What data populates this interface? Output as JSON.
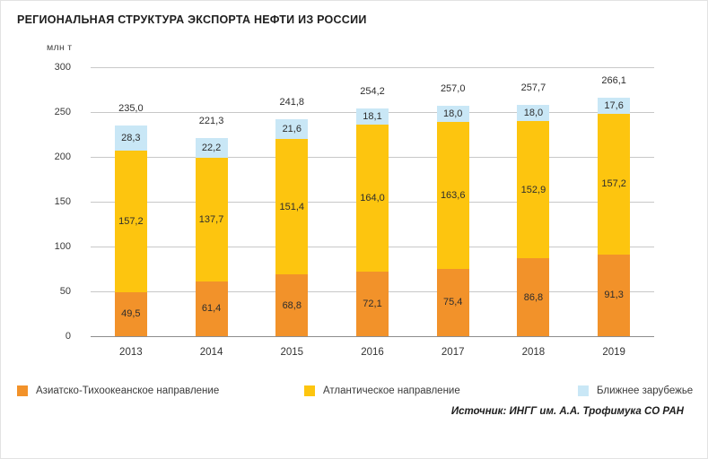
{
  "source": "Источник: ИНГГ им. А.А. Трофимука СО РАН",
  "chart_data": {
    "type": "bar",
    "stacked": true,
    "title": "РЕГИОНАЛЬНАЯ СТРУКТУРА ЭКСПОРТА НЕФТИ ИЗ РОССИИ",
    "unit_label": "млн т",
    "categories": [
      "2013",
      "2014",
      "2015",
      "2016",
      "2017",
      "2018",
      "2019"
    ],
    "series": [
      {
        "name": "Азиатско-Тихоокеанское направление",
        "color": "#F2922A",
        "values": [
          49.5,
          61.4,
          68.8,
          72.1,
          75.4,
          86.8,
          91.3
        ],
        "labels": [
          "49,5",
          "61,4",
          "68,8",
          "72,1",
          "75,4",
          "86,8",
          "91,3"
        ]
      },
      {
        "name": "Атлантическое направление",
        "color": "#FDC50F",
        "values": [
          157.2,
          137.7,
          151.4,
          164.0,
          163.6,
          152.9,
          157.2
        ],
        "labels": [
          "157,2",
          "137,7",
          "151,4",
          "164,0",
          "163,6",
          "152,9",
          "157,2"
        ]
      },
      {
        "name": "Ближнее зарубежье",
        "color": "#C9E7F6",
        "values": [
          28.3,
          22.2,
          21.6,
          18.1,
          18.0,
          18.0,
          17.6
        ],
        "labels": [
          "28,3",
          "22,2",
          "21,6",
          "18,1",
          "18,0",
          "18,0",
          "17,6"
        ]
      }
    ],
    "totals": [
      235.0,
      221.3,
      241.8,
      254.2,
      257.0,
      257.7,
      266.1
    ],
    "total_labels": [
      "235,0",
      "221,3",
      "241,8",
      "254,2",
      "257,0",
      "257,7",
      "266,1"
    ],
    "y_ticks": [
      0,
      50,
      100,
      150,
      200,
      250,
      300
    ],
    "ylim": [
      0,
      300
    ],
    "grid": true,
    "legend_position": "bottom",
    "colors": {
      "gridline": "#c8c8c8",
      "baseline": "#8d8d8d",
      "text": "#2d2d2d"
    }
  }
}
